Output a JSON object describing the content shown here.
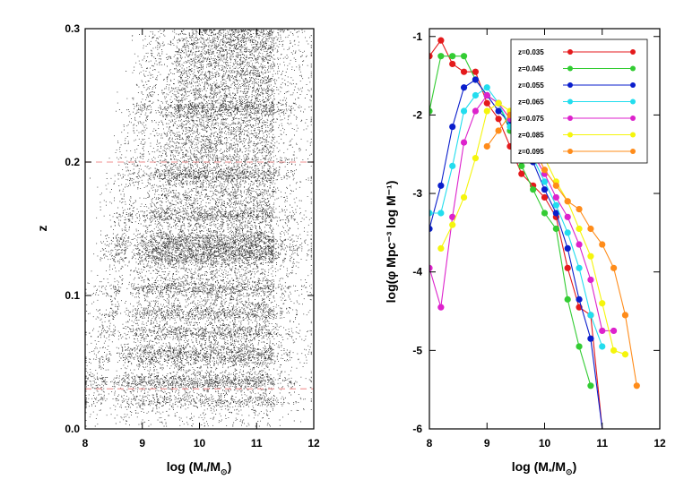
{
  "chart_data": [
    {
      "type": "scatter",
      "title": "",
      "xlabel_prefix": "log (M",
      "xlabel_sub1": "*",
      "xlabel_mid": "/M",
      "xlabel_sub2": "⊙",
      "xlabel_suffix": ")",
      "ylabel": "z",
      "xlim": [
        8,
        12
      ],
      "ylim": [
        0,
        0.3
      ],
      "xticks": [
        8,
        9,
        10,
        11,
        12
      ],
      "yticks": [
        0.0,
        0.1,
        0.2,
        0.3
      ],
      "xtick_labels": [
        "8",
        "9",
        "10",
        "11",
        "12"
      ],
      "ytick_labels": [
        "0.0",
        "0.1",
        "0.2",
        "0.3"
      ],
      "point_color": "#000000",
      "density_note": "dense galaxy cloud; lower stellar mass limit rises with z",
      "guide_lines": [
        {
          "axis": "y",
          "value": 0.2,
          "color": "#f4a6a6",
          "style": "dashed"
        },
        {
          "axis": "y",
          "value": 0.03,
          "color": "#f4a6a6",
          "style": "dashed"
        }
      ]
    },
    {
      "type": "line",
      "title": "",
      "xlabel_prefix": "log (M",
      "xlabel_sub1": "*",
      "xlabel_mid": "/M",
      "xlabel_sub2": "⊙",
      "xlabel_suffix": ")",
      "ylabel": "log(φ Mpc⁻³ log M⁻¹)",
      "xlim": [
        8,
        12
      ],
      "ylim": [
        -6,
        -0.9
      ],
      "xticks": [
        8,
        9,
        10,
        11,
        12
      ],
      "yticks": [
        -6,
        -5,
        -4,
        -3,
        -2,
        -1
      ],
      "xtick_labels": [
        "8",
        "9",
        "10",
        "11",
        "12"
      ],
      "ytick_labels": [
        "-6",
        "-5",
        "-4",
        "-3",
        "-2",
        "-1"
      ],
      "series": [
        {
          "name": "z=0.035",
          "color": "#e41a1c",
          "x": [
            8.0,
            8.2,
            8.4,
            8.6,
            8.8,
            9.0,
            9.2,
            9.4,
            9.6,
            9.8,
            10.0,
            10.2,
            10.4,
            10.6,
            10.8,
            11.0
          ],
          "y": [
            -1.25,
            -1.05,
            -1.35,
            -1.45,
            -1.45,
            -1.85,
            -2.05,
            -2.4,
            -2.75,
            -2.9,
            -3.05,
            -3.3,
            -3.95,
            -4.45,
            -4.55,
            -6.0
          ]
        },
        {
          "name": "z=0.045",
          "color": "#33cc33",
          "x": [
            8.0,
            8.2,
            8.4,
            8.6,
            8.8,
            9.0,
            9.2,
            9.4,
            9.6,
            9.8,
            10.0,
            10.2,
            10.4,
            10.6,
            10.8
          ],
          "y": [
            -1.95,
            -1.25,
            -1.25,
            -1.25,
            -1.55,
            -1.75,
            -1.85,
            -2.2,
            -2.65,
            -2.95,
            -3.25,
            -3.45,
            -4.35,
            -4.95,
            -5.45
          ]
        },
        {
          "name": "z=0.055",
          "color": "#0a1ecc",
          "x": [
            8.0,
            8.2,
            8.4,
            8.6,
            8.8,
            9.0,
            9.2,
            9.4,
            9.6,
            9.8,
            10.0,
            10.2,
            10.4,
            10.6,
            10.8,
            11.0
          ],
          "y": [
            -3.45,
            -2.9,
            -2.15,
            -1.65,
            -1.55,
            -1.75,
            -1.95,
            -2.1,
            -2.35,
            -2.6,
            -2.95,
            -3.25,
            -3.7,
            -4.35,
            -4.85,
            -6.0
          ]
        },
        {
          "name": "z=0.065",
          "color": "#22ddee",
          "x": [
            8.0,
            8.2,
            8.4,
            8.6,
            8.8,
            9.0,
            9.2,
            9.4,
            9.6,
            9.8,
            10.0,
            10.2,
            10.4,
            10.6,
            10.8,
            11.0
          ],
          "y": [
            -3.25,
            -3.25,
            -2.65,
            -1.95,
            -1.75,
            -1.65,
            -1.85,
            -2.15,
            -2.3,
            -2.55,
            -2.85,
            -3.15,
            -3.5,
            -3.95,
            -4.55,
            -4.95
          ]
        },
        {
          "name": "z=0.075",
          "color": "#dd22cc",
          "x": [
            8.0,
            8.2,
            8.4,
            8.6,
            8.8,
            9.0,
            9.2,
            9.4,
            9.6,
            9.8,
            10.0,
            10.2,
            10.4,
            10.6,
            10.8,
            11.0,
            11.2
          ],
          "y": [
            -3.95,
            -4.45,
            -3.3,
            -2.35,
            -1.95,
            -1.75,
            -1.85,
            -2.05,
            -2.25,
            -2.5,
            -2.75,
            -3.05,
            -3.3,
            -3.65,
            -4.1,
            -4.75,
            -4.75
          ]
        },
        {
          "name": "z=0.085",
          "color": "#f5f50c",
          "x": [
            8.2,
            8.4,
            8.6,
            8.8,
            9.0,
            9.2,
            9.4,
            9.6,
            9.8,
            10.0,
            10.2,
            10.4,
            10.6,
            10.8,
            11.0,
            11.2,
            11.4
          ],
          "y": [
            -3.7,
            -3.4,
            -3.05,
            -2.55,
            -1.95,
            -1.85,
            -1.95,
            -2.15,
            -2.3,
            -2.55,
            -2.85,
            -3.1,
            -3.45,
            -3.8,
            -4.4,
            -5.0,
            -5.05
          ]
        },
        {
          "name": "z=0.095",
          "color": "#ff8c1a",
          "x": [
            9.0,
            9.2,
            9.4,
            9.6,
            9.8,
            10.0,
            10.2,
            10.4,
            10.6,
            10.8,
            11.0,
            11.2,
            11.4,
            11.6
          ],
          "y": [
            -2.4,
            -2.2,
            -2.0,
            -2.2,
            -2.4,
            -2.7,
            -2.9,
            -3.1,
            -3.2,
            -3.45,
            -3.65,
            -3.95,
            -4.55,
            -5.45
          ]
        }
      ],
      "legend_position": "top-right"
    }
  ]
}
